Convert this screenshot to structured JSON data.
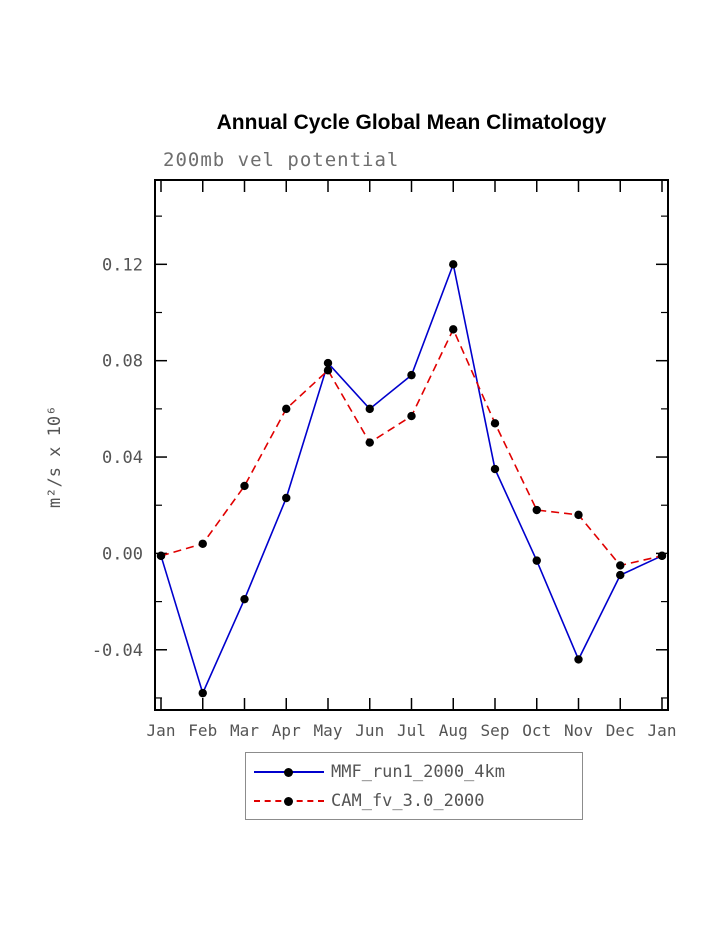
{
  "title": "Annual Cycle Global Mean Climatology",
  "subtitle": "200mb vel potential",
  "text_color": "#545454",
  "axis_color": "#000000",
  "chart_data": {
    "type": "line",
    "categories": [
      "Jan",
      "Feb",
      "Mar",
      "Apr",
      "May",
      "Jun",
      "Jul",
      "Aug",
      "Sep",
      "Oct",
      "Nov",
      "Dec",
      "Jan"
    ],
    "series": [
      {
        "name": "MMF_run1_2000_4km",
        "color": "#0000cd",
        "line_style": "solid",
        "marker": "filled-circle",
        "marker_color": "#000000",
        "values": [
          -0.001,
          -0.058,
          -0.019,
          0.023,
          0.079,
          0.06,
          0.074,
          0.12,
          0.035,
          -0.003,
          -0.044,
          -0.009,
          -0.001
        ]
      },
      {
        "name": "CAM_fv_3.0_2000",
        "color": "#e00000",
        "line_style": "dashed",
        "marker": "filled-circle",
        "marker_color": "#000000",
        "values": [
          -0.001,
          0.004,
          0.028,
          0.06,
          0.076,
          0.046,
          0.057,
          0.093,
          0.054,
          0.018,
          0.016,
          -0.005,
          -0.001
        ]
      }
    ],
    "xlabel": "",
    "ylabel": "m²/s x 10⁶",
    "yticks": [
      -0.04,
      0.0,
      0.04,
      0.08,
      0.12
    ],
    "ylim": [
      -0.065,
      0.155
    ],
    "grid": false,
    "legend_position": "bottom"
  }
}
